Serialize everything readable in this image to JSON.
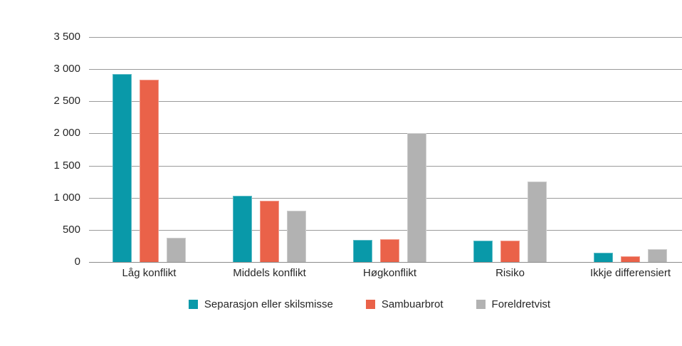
{
  "chart_data": {
    "type": "bar",
    "title": "",
    "categories": [
      "Låg konflikt",
      "Middels konflikt",
      "Høgkonflikt",
      "Risiko",
      "Ikkje differensiert"
    ],
    "series": [
      {
        "name": "Separasjon eller skilsmisse",
        "color": "#0999A9",
        "values": [
          2920,
          1030,
          340,
          330,
          140
        ]
      },
      {
        "name": "Sambuarbrot",
        "color": "#EA6249",
        "values": [
          2840,
          950,
          350,
          330,
          90
        ]
      },
      {
        "name": "Foreldretvist",
        "color": "#B2B2B2",
        "values": [
          380,
          800,
          2000,
          1250,
          200
        ]
      }
    ],
    "ylim": [
      0,
      3500
    ],
    "ytick_step": 500,
    "ytick_labels": [
      "0",
      "500",
      "1 000",
      "1 500",
      "2 000",
      "2 500",
      "3 000",
      "3 500"
    ],
    "grid": true,
    "legend_position": "bottom",
    "xlabel": "",
    "ylabel": ""
  },
  "colors": {
    "background": "#ffffff",
    "gridline": "#9a9a9a",
    "axis_text": "#262626",
    "series_teal": "#0999A9",
    "series_red": "#EA6249",
    "series_gray": "#B2B2B2"
  }
}
